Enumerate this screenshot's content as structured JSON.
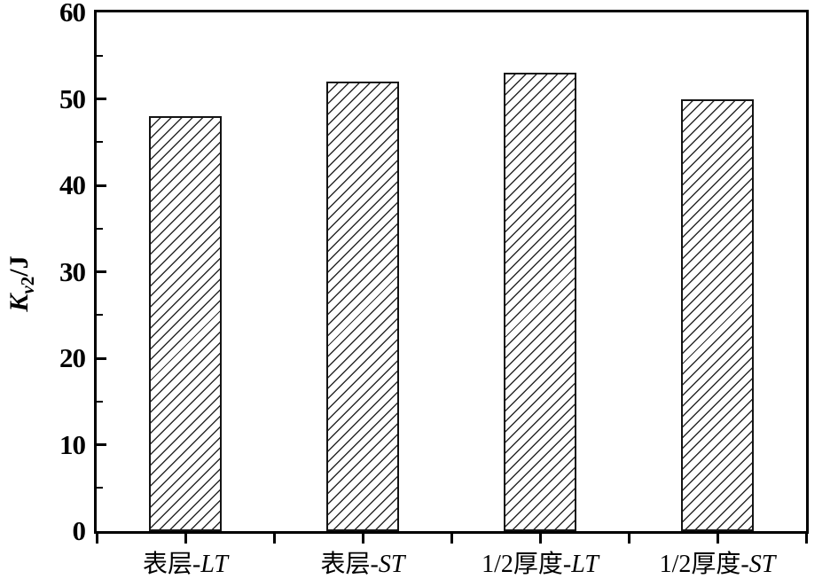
{
  "figure": {
    "background": "#ffffff"
  },
  "y_axis": {
    "title_symbol": "K",
    "title_sub_italic": "v",
    "title_sub_digit": "2",
    "title_rest": "/J",
    "tick_labels": [
      "0",
      "10",
      "20",
      "30",
      "40",
      "50",
      "60"
    ]
  },
  "chart_data": {
    "type": "bar",
    "title": "",
    "xlabel": "",
    "ylabel": "Kv2/J",
    "categories": [
      "表层-LT",
      "表层-ST",
      "1/2厚度-LT",
      "1/2厚度-ST"
    ],
    "categories_rich": [
      {
        "pre": "表层-",
        "it": "LT"
      },
      {
        "pre": "表层-",
        "it": "ST"
      },
      {
        "pre": "1/2厚度-",
        "it": "LT"
      },
      {
        "pre": "1/2厚度-",
        "it": "ST"
      }
    ],
    "values": [
      48,
      52,
      53,
      50
    ],
    "ylim": [
      0,
      60
    ],
    "y_major_step": 10,
    "y_minor_step": 5,
    "grid": false,
    "legend": "none",
    "frame": "full-box",
    "bar_style": {
      "fill": "#ffffff",
      "hatch": "diagonal-forward",
      "hatch_color": "#262626",
      "border_color": "#141414"
    },
    "axis_color": "#000000"
  }
}
